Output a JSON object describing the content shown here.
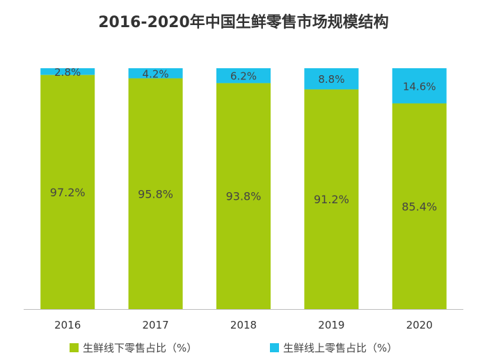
{
  "chart_data": {
    "type": "bar",
    "stacked": true,
    "title": "2016-2020年中国生鲜零售市场规模结构",
    "categories": [
      "2016",
      "2017",
      "2018",
      "2019",
      "2020"
    ],
    "series": [
      {
        "name": "生鲜线下零售占比（%）",
        "values": [
          97.2,
          95.8,
          93.8,
          91.2,
          85.4
        ],
        "color": "#a5c90f"
      },
      {
        "name": "生鲜线上零售占比（%）",
        "values": [
          2.8,
          4.2,
          6.2,
          8.8,
          14.6
        ],
        "color": "#1ec1eb"
      }
    ],
    "labels": {
      "offline": [
        "97.2%",
        "95.8%",
        "93.8%",
        "91.2%",
        "85.4%"
      ],
      "online": [
        "2.8%",
        "4.2%",
        "6.2%",
        "8.8%",
        "14.6%"
      ]
    },
    "ylim": [
      0,
      100
    ],
    "grid": false,
    "legend_position": "bottom"
  }
}
